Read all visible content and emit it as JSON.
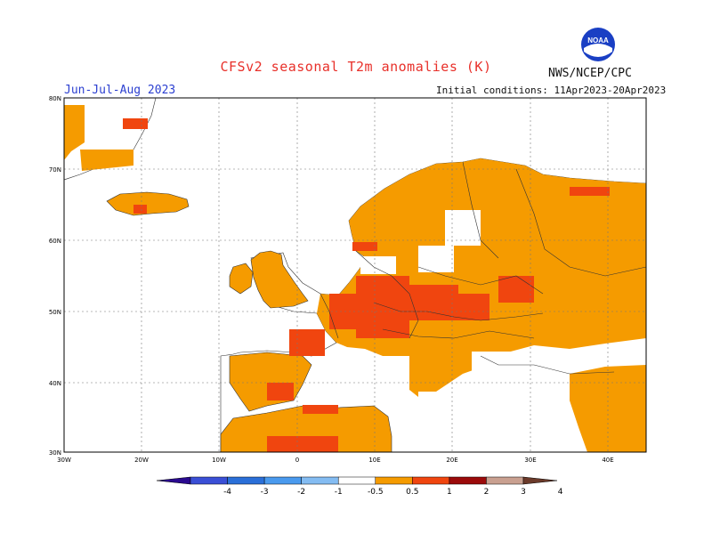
{
  "header": {
    "title": "CFSv2 seasonal T2m anomalies (K)",
    "period": "Jun-Jul-Aug 2023",
    "initial_conditions": "Initial conditions: 11Apr2023-20Apr2023",
    "agency": "NWS/NCEP/CPC",
    "logo_text": "NOAA"
  },
  "map": {
    "lat_labels": [
      "80N",
      "70N",
      "60N",
      "50N",
      "40N",
      "30N"
    ],
    "lon_labels": [
      "30W",
      "20W",
      "10W",
      "0",
      "10E",
      "20E",
      "30E",
      "40E"
    ],
    "lat_range": [
      30,
      80
    ],
    "lon_range": [
      -30,
      45
    ]
  },
  "legend": {
    "tick_labels": [
      "-4",
      "-3",
      "-2",
      "-1",
      "-0.5",
      "0.5",
      "1",
      "2",
      "3",
      "4"
    ],
    "colors": [
      "#2a0a8f",
      "#3a4fd6",
      "#2a6fd8",
      "#4a9aee",
      "#84bcf2",
      "#ffffff",
      "#f59b00",
      "#f0450f",
      "#9b0a0a",
      "#c9a090",
      "#6b3a2a"
    ]
  }
}
